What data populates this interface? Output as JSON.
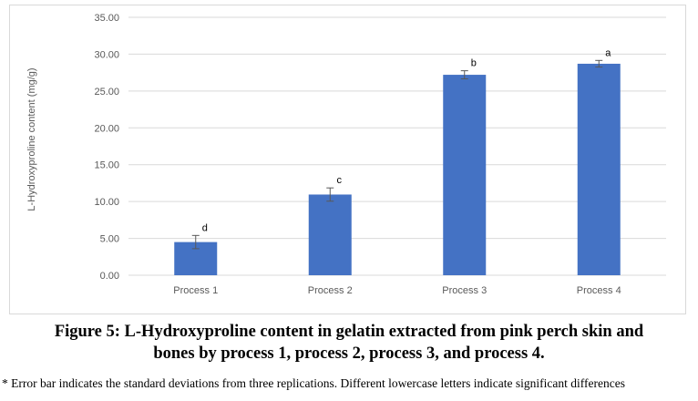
{
  "chart_data": {
    "type": "bar",
    "categories": [
      "Process 1",
      "Process 2",
      "Process 3",
      "Process 4"
    ],
    "values": [
      4.5,
      10.95,
      27.2,
      28.7
    ],
    "error": [
      0.9,
      0.9,
      0.55,
      0.45
    ],
    "significance_letters": [
      "d",
      "c",
      "b",
      "a"
    ],
    "ylabel": "L-Hydroxyproline content (mg/g)",
    "xlabel": "",
    "ylim": [
      0,
      35
    ],
    "yticks": [
      "0.00",
      "5.00",
      "10.00",
      "15.00",
      "20.00",
      "25.00",
      "30.00",
      "35.00"
    ],
    "grid": true,
    "bar_color": "#4472c4",
    "grid_color": "#d9d9d9"
  },
  "caption": {
    "line1": "Figure 5: L-Hydroxyproline content in gelatin extracted from pink perch skin and",
    "line2": "bones by process 1, process 2, process 3, and process 4."
  },
  "footnote": "* Error bar indicates the standard deviations from three replications. Different lowercase letters indicate significant differences"
}
